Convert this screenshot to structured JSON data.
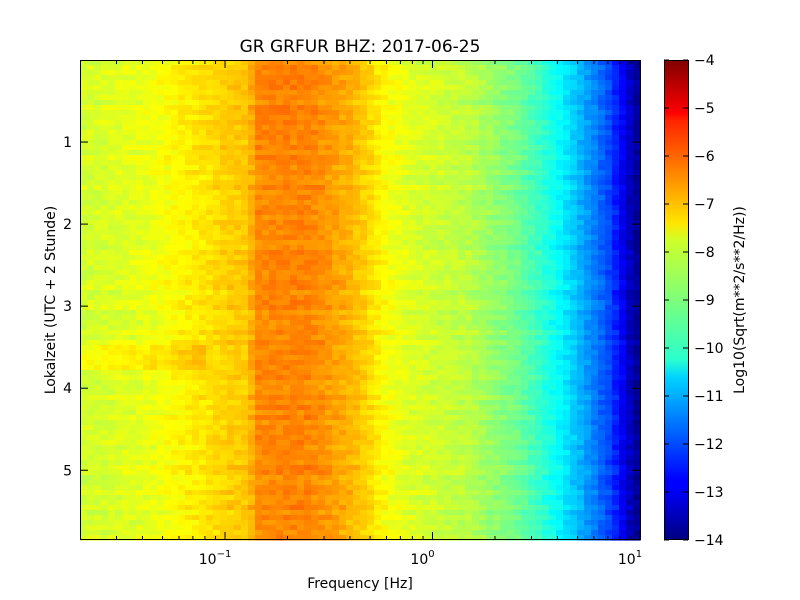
{
  "chart_data": {
    "type": "heatmap",
    "title": "GR GRFUR BHZ: 2017-06-25",
    "xlabel": "Frequency [Hz]",
    "ylabel": "Lokalzeit (UTC + 2 Stunde)",
    "x_scale": "log",
    "xlim": [
      0.02,
      10
    ],
    "ylim": [
      0,
      5.85
    ],
    "y_inverted": true,
    "x_ticks": [
      {
        "value": 0.1,
        "base": "10",
        "exp": "−1"
      },
      {
        "value": 1,
        "base": "10",
        "exp": "0"
      },
      {
        "value": 10,
        "base": "10",
        "exp": "1"
      }
    ],
    "y_ticks": [
      {
        "value": 1,
        "label": "1"
      },
      {
        "value": 2,
        "label": "2"
      },
      {
        "value": 3,
        "label": "3"
      },
      {
        "value": 4,
        "label": "4"
      },
      {
        "value": 5,
        "label": "5"
      }
    ],
    "colorbar": {
      "label": "Log10(Sqrt(m**2/s**2/Hz))",
      "min": -14,
      "max": -4,
      "ticks": [
        {
          "value": -4,
          "label": "−4"
        },
        {
          "value": -5,
          "label": "−5"
        },
        {
          "value": -6,
          "label": "−6"
        },
        {
          "value": -7,
          "label": "−7"
        },
        {
          "value": -8,
          "label": "−8"
        },
        {
          "value": -9,
          "label": "−9"
        },
        {
          "value": -10,
          "label": "−10"
        },
        {
          "value": -11,
          "label": "−11"
        },
        {
          "value": -12,
          "label": "−12"
        },
        {
          "value": -13,
          "label": "−13"
        },
        {
          "value": -14,
          "label": "−14"
        }
      ],
      "colormap": "jet"
    },
    "spectrum_profile": {
      "frequency_hz": [
        0.02,
        0.04,
        0.06,
        0.08,
        0.1,
        0.13,
        0.14,
        0.2,
        0.25,
        0.3,
        0.4,
        0.5,
        0.6,
        0.8,
        1.0,
        1.5,
        2.0,
        2.5,
        3.0,
        4.0,
        5.0,
        6.0,
        7.0,
        8.0,
        9.0,
        10.0
      ],
      "log10_amplitude": [
        -8.2,
        -8.0,
        -7.7,
        -7.5,
        -7.3,
        -7.2,
        -6.6,
        -6.55,
        -6.55,
        -6.7,
        -7.0,
        -7.4,
        -7.8,
        -8.1,
        -8.2,
        -8.4,
        -8.8,
        -9.1,
        -9.5,
        -10.2,
        -10.9,
        -11.5,
        -12.0,
        -12.7,
        -13.4,
        -13.9
      ]
    }
  }
}
